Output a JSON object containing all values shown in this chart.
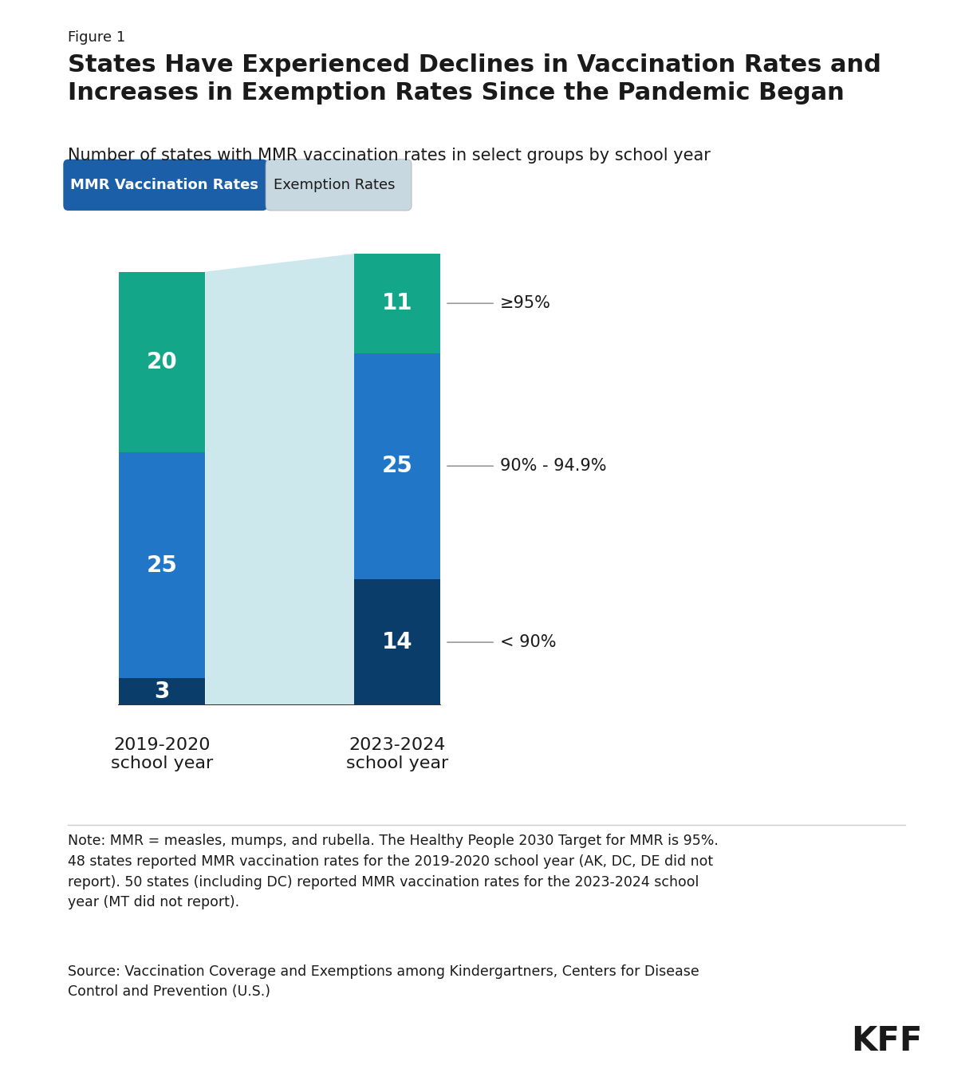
{
  "figure_label": "Figure 1",
  "title": "States Have Experienced Declines in Vaccination Rates and\nIncreases in Exemption Rates Since the Pandemic Began",
  "subtitle": "Number of states with MMR vaccination rates in select groups by school year",
  "legend_mmr_label": "MMR Vaccination Rates",
  "legend_mmr_color": "#1B5FA8",
  "legend_exemption_label": "Exemption Rates",
  "legend_exemption_color": "#C8D8E0",
  "bar1_label": "2019-2020\nschool year",
  "bar2_label": "2023-2024\nschool year",
  "bar1_values": [
    3,
    25,
    20
  ],
  "bar2_values": [
    14,
    25,
    11
  ],
  "colors_bar": [
    "#0B3D6B",
    "#2176C7",
    "#13A688"
  ],
  "rate_labels": [
    "≥95%",
    "90% - 94.9%",
    "< 90%"
  ],
  "ghost_color": "#C8E6EC",
  "bar_width": 0.55,
  "bar_positions": [
    1.0,
    2.5
  ],
  "note_text": "Note: MMR = measles, mumps, and rubella. The Healthy People 2030 Target for MMR is 95%.\n48 states reported MMR vaccination rates for the 2019-2020 school year (AK, DC, DE did not\nreport). 50 states (including DC) reported MMR vaccination rates for the 2023-2024 school\nyear (MT did not report).",
  "source_text": "Source: Vaccination Coverage and Exemptions among Kindergartners, Centers for Disease\nControl and Prevention (U.S.)",
  "kff_text": "KFF",
  "background_color": "#FFFFFF",
  "text_color": "#1A1A1A",
  "line_color": "#999999",
  "ylim_max": 55
}
